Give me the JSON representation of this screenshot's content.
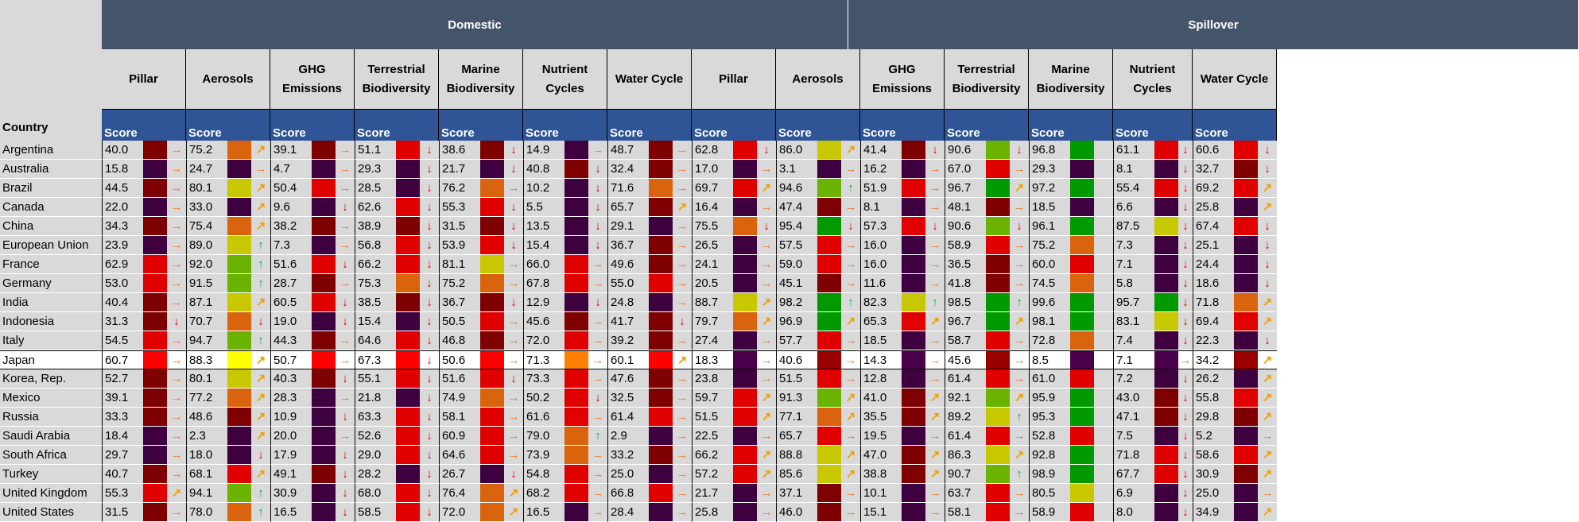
{
  "header": {
    "groups": [
      "Domestic",
      "Spillover"
    ],
    "country_label": "Country",
    "score_label": "Score",
    "indicators": [
      "Pillar",
      "Aerosols",
      "GHG Emissions",
      "Terrestrial Biodiversity",
      "Marine Biodiversity",
      "Nutrient Cycles",
      "Water Cycle"
    ]
  },
  "chart_data": {
    "type": "table",
    "highlighted_country": "Japan",
    "colors": {
      "purple": "#3f003f",
      "maroon": "#7f0000",
      "red": "#e00000",
      "orange": "#d9640d",
      "yellow_green": "#c8c800",
      "green_light": "#6ab300",
      "green": "#009a00",
      "bright_red": "#ff0000",
      "bright_orange": "#ff7f00",
      "bright_yellow": "#ffff00",
      "bright_purple": "#4b004b",
      "bright_maroon": "#9a0000",
      "arrow_orange": "#ed7d31",
      "arrow_amber": "#f0a000",
      "arrow_green": "#00b050",
      "arrow_red": "#e00000"
    },
    "countries": [
      "Argentina",
      "Australia",
      "Brazil",
      "Canada",
      "China",
      "European Union",
      "France",
      "Germany",
      "India",
      "Indonesia",
      "Italy",
      "Japan",
      "Korea, Rep.",
      "Mexico",
      "Russia",
      "Saudi Arabia",
      "South Africa",
      "Turkey",
      "United Kingdom",
      "United States"
    ],
    "domestic": {
      "scores": [
        [
          40.0,
          75.2,
          39.1,
          51.1,
          38.6,
          14.9,
          48.7
        ],
        [
          15.8,
          24.7,
          4.7,
          29.3,
          21.7,
          40.8,
          32.4
        ],
        [
          44.5,
          80.1,
          50.4,
          28.5,
          76.2,
          10.2,
          71.6
        ],
        [
          22.0,
          33.0,
          9.6,
          62.6,
          55.3,
          5.5,
          65.7
        ],
        [
          34.3,
          75.4,
          38.2,
          38.9,
          31.5,
          13.5,
          29.1
        ],
        [
          23.9,
          89.0,
          7.3,
          56.8,
          53.9,
          15.4,
          36.7
        ],
        [
          62.9,
          92.0,
          51.6,
          66.2,
          81.1,
          66.0,
          49.6
        ],
        [
          53.0,
          91.5,
          28.7,
          75.3,
          75.2,
          67.8,
          55.0
        ],
        [
          40.4,
          87.1,
          60.5,
          38.5,
          36.7,
          12.9,
          24.8
        ],
        [
          31.3,
          70.7,
          19.0,
          15.4,
          50.5,
          45.6,
          41.7
        ],
        [
          54.5,
          94.7,
          44.3,
          64.6,
          46.8,
          72.0,
          39.2
        ],
        [
          60.7,
          88.3,
          50.7,
          67.3,
          50.6,
          71.3,
          60.1
        ],
        [
          52.7,
          80.1,
          40.3,
          55.1,
          51.6,
          73.3,
          47.6
        ],
        [
          39.1,
          77.2,
          28.3,
          21.8,
          74.9,
          50.2,
          32.5
        ],
        [
          33.3,
          48.6,
          10.9,
          63.3,
          58.1,
          61.6,
          61.4
        ],
        [
          18.4,
          2.3,
          20.0,
          52.6,
          60.9,
          79.0,
          2.9
        ],
        [
          29.7,
          18.0,
          17.9,
          29.0,
          64.6,
          73.9,
          33.2
        ],
        [
          40.7,
          68.1,
          49.1,
          28.2,
          26.7,
          54.8,
          25.0
        ],
        [
          55.3,
          94.1,
          30.9,
          68.0,
          76.4,
          68.2,
          66.8
        ],
        [
          31.5,
          78.0,
          16.5,
          58.5,
          72.0,
          16.5,
          28.4
        ]
      ],
      "colors": [
        [
          "maroon",
          "orange",
          "maroon",
          "red",
          "maroon",
          "purple",
          "maroon"
        ],
        [
          "purple",
          "purple",
          "purple",
          "purple",
          "purple",
          "maroon",
          "maroon"
        ],
        [
          "maroon",
          "yellow_green",
          "red",
          "purple",
          "orange",
          "purple",
          "orange"
        ],
        [
          "purple",
          "purple",
          "purple",
          "red",
          "red",
          "purple",
          "maroon"
        ],
        [
          "maroon",
          "orange",
          "maroon",
          "maroon",
          "maroon",
          "purple",
          "purple"
        ],
        [
          "purple",
          "yellow_green",
          "purple",
          "red",
          "red",
          "purple",
          "maroon"
        ],
        [
          "red",
          "green_light",
          "red",
          "red",
          "yellow_green",
          "red",
          "maroon"
        ],
        [
          "red",
          "green_light",
          "maroon",
          "orange",
          "orange",
          "red",
          "red"
        ],
        [
          "maroon",
          "yellow_green",
          "red",
          "maroon",
          "maroon",
          "purple",
          "purple"
        ],
        [
          "maroon",
          "orange",
          "purple",
          "purple",
          "red",
          "maroon",
          "maroon"
        ],
        [
          "red",
          "green_light",
          "maroon",
          "red",
          "maroon",
          "red",
          "maroon"
        ],
        [
          "bright_red",
          "bright_yellow",
          "bright_red",
          "bright_red",
          "bright_red",
          "bright_orange",
          "bright_red"
        ],
        [
          "maroon",
          "yellow_green",
          "maroon",
          "red",
          "red",
          "red",
          "maroon"
        ],
        [
          "maroon",
          "orange",
          "purple",
          "purple",
          "orange",
          "red",
          "maroon"
        ],
        [
          "maroon",
          "maroon",
          "purple",
          "red",
          "red",
          "red",
          "red"
        ],
        [
          "purple",
          "purple",
          "purple",
          "red",
          "red",
          "orange",
          "purple"
        ],
        [
          "purple",
          "purple",
          "purple",
          "red",
          "red",
          "orange",
          "maroon"
        ],
        [
          "maroon",
          "red",
          "maroon",
          "purple",
          "purple",
          "red",
          "purple"
        ],
        [
          "red",
          "green_light",
          "purple",
          "red",
          "orange",
          "red",
          "red"
        ],
        [
          "maroon",
          "orange",
          "purple",
          "red",
          "orange",
          "purple",
          "purple"
        ]
      ],
      "trends": [
        [
          "→",
          "↗",
          "→",
          "↓",
          "↓",
          "→",
          "→"
        ],
        [
          "→",
          "→",
          "→",
          "↓",
          "↓",
          "↓",
          "→"
        ],
        [
          "→",
          "↗",
          "→",
          "↓",
          "→",
          "↓",
          "→"
        ],
        [
          "→",
          "↗",
          "↓",
          "↓",
          "↓",
          "↓",
          "↗"
        ],
        [
          "→",
          "↗",
          "→",
          "↓",
          "↓",
          "↓",
          "→"
        ],
        [
          "→",
          "↑",
          "→",
          "↓",
          "↓",
          "↓",
          "→"
        ],
        [
          "→",
          "↑",
          "↓",
          "↓",
          "→",
          "→",
          "→"
        ],
        [
          "→",
          "↑",
          "→",
          "↓",
          "→",
          "→",
          "→"
        ],
        [
          "→",
          "↗",
          "↓",
          "↓",
          "↓",
          "↓",
          "→"
        ],
        [
          "↓",
          "↓",
          "↓",
          "↓",
          "→",
          "→",
          "↓"
        ],
        [
          "→",
          "↑",
          "→",
          "↓",
          "→",
          "→",
          "→"
        ],
        [
          "→",
          "↗",
          "→",
          "↓",
          "→",
          "→",
          "↗"
        ],
        [
          "→",
          "↗",
          "↓",
          "↓",
          "↓",
          "→",
          "→"
        ],
        [
          "→",
          "↗",
          "→",
          "↓",
          "→",
          "↓",
          "→"
        ],
        [
          "→",
          "↗",
          "↓",
          "↓",
          "→",
          "→",
          "→"
        ],
        [
          "→",
          "↗",
          "→",
          "↓",
          "→",
          "↑",
          "→"
        ],
        [
          "→",
          "↓",
          "↓",
          "↓",
          "→",
          "→",
          "→"
        ],
        [
          "→",
          "↗",
          "↓",
          "↓",
          "↓",
          "→",
          "→"
        ],
        [
          "↗",
          "↑",
          "↓",
          "↓",
          "↗",
          "→",
          "→"
        ],
        [
          "→",
          "↑",
          "↓",
          "↓",
          "↗",
          "→",
          "→"
        ]
      ]
    },
    "spillover": {
      "scores": [
        [
          62.8,
          86.0,
          41.4,
          90.6,
          96.8,
          61.1,
          60.6
        ],
        [
          17.0,
          3.1,
          16.2,
          67.0,
          29.3,
          8.1,
          32.7
        ],
        [
          69.7,
          94.6,
          51.9,
          96.7,
          97.2,
          55.4,
          69.2
        ],
        [
          16.4,
          47.4,
          8.1,
          48.1,
          18.5,
          6.6,
          25.8
        ],
        [
          75.5,
          95.4,
          57.3,
          90.6,
          96.1,
          87.5,
          67.4
        ],
        [
          26.5,
          57.5,
          16.0,
          58.9,
          75.2,
          7.3,
          25.1
        ],
        [
          24.1,
          59.0,
          16.0,
          36.5,
          60.0,
          7.1,
          24.4
        ],
        [
          20.5,
          45.1,
          11.6,
          41.8,
          74.5,
          5.8,
          18.6
        ],
        [
          88.7,
          98.2,
          82.3,
          98.5,
          99.6,
          95.7,
          71.8
        ],
        [
          79.7,
          96.9,
          65.3,
          96.7,
          98.1,
          83.1,
          69.4
        ],
        [
          27.4,
          57.7,
          18.5,
          58.7,
          72.8,
          7.4,
          22.3
        ],
        [
          18.3,
          40.6,
          14.3,
          45.6,
          8.5,
          7.1,
          34.2
        ],
        [
          23.8,
          51.5,
          12.8,
          61.4,
          61.0,
          7.2,
          26.2
        ],
        [
          59.7,
          91.3,
          41.0,
          92.1,
          95.9,
          43.0,
          55.8
        ],
        [
          51.5,
          77.1,
          35.5,
          89.2,
          95.3,
          47.1,
          29.8
        ],
        [
          22.5,
          65.7,
          19.5,
          61.4,
          52.8,
          7.5,
          5.2
        ],
        [
          66.2,
          88.8,
          47.0,
          86.3,
          92.8,
          71.8,
          58.6
        ],
        [
          57.2,
          85.6,
          38.8,
          90.7,
          98.9,
          67.7,
          30.9
        ],
        [
          21.7,
          37.1,
          10.1,
          63.7,
          80.5,
          6.9,
          25.0
        ],
        [
          25.8,
          46.0,
          15.1,
          58.1,
          58.9,
          8.0,
          34.9
        ]
      ],
      "colors": [
        [
          "red",
          "yellow_green",
          "maroon",
          "green_light",
          "green",
          "red",
          "red"
        ],
        [
          "purple",
          "purple",
          "purple",
          "red",
          "purple",
          "purple",
          "maroon"
        ],
        [
          "red",
          "green_light",
          "red",
          "green",
          "green",
          "red",
          "red"
        ],
        [
          "purple",
          "maroon",
          "purple",
          "maroon",
          "purple",
          "purple",
          "purple"
        ],
        [
          "orange",
          "green",
          "red",
          "green_light",
          "green",
          "yellow_green",
          "red"
        ],
        [
          "purple",
          "red",
          "purple",
          "red",
          "orange",
          "purple",
          "purple"
        ],
        [
          "purple",
          "red",
          "purple",
          "maroon",
          "red",
          "purple",
          "purple"
        ],
        [
          "purple",
          "maroon",
          "purple",
          "maroon",
          "orange",
          "purple",
          "purple"
        ],
        [
          "yellow_green",
          "green",
          "yellow_green",
          "green",
          "green",
          "green",
          "orange"
        ],
        [
          "orange",
          "green",
          "red",
          "green",
          "green",
          "yellow_green",
          "red"
        ],
        [
          "purple",
          "red",
          "purple",
          "red",
          "orange",
          "purple",
          "purple"
        ],
        [
          "bright_purple",
          "bright_maroon",
          "bright_purple",
          "bright_maroon",
          "bright_purple",
          "bright_purple",
          "bright_maroon"
        ],
        [
          "purple",
          "red",
          "purple",
          "red",
          "red",
          "purple",
          "purple"
        ],
        [
          "red",
          "green_light",
          "maroon",
          "green_light",
          "green",
          "maroon",
          "red"
        ],
        [
          "red",
          "orange",
          "maroon",
          "yellow_green",
          "green",
          "maroon",
          "maroon"
        ],
        [
          "purple",
          "red",
          "purple",
          "red",
          "red",
          "purple",
          "purple"
        ],
        [
          "red",
          "yellow_green",
          "maroon",
          "yellow_green",
          "green",
          "red",
          "red"
        ],
        [
          "red",
          "yellow_green",
          "maroon",
          "green_light",
          "green",
          "red",
          "maroon"
        ],
        [
          "purple",
          "maroon",
          "purple",
          "red",
          "yellow_green",
          "purple",
          "purple"
        ],
        [
          "purple",
          "maroon",
          "purple",
          "red",
          "red",
          "purple",
          "purple"
        ]
      ],
      "trends": [
        [
          "↓",
          "↗",
          "↓",
          "↓",
          "",
          "↓",
          "↓"
        ],
        [
          "→",
          "→",
          "→",
          "→",
          "",
          "↓",
          "↓"
        ],
        [
          "↗",
          "↑",
          "→",
          "↗",
          "",
          "↓",
          "↗"
        ],
        [
          "→",
          "→",
          "→",
          "→",
          "",
          "↓",
          "↗"
        ],
        [
          "↓",
          "↓",
          "↓",
          "↓",
          "",
          "↓",
          "↓"
        ],
        [
          "→",
          "→",
          "→",
          "→",
          "",
          "↓",
          "↓"
        ],
        [
          "→",
          "→",
          "→",
          "→",
          "",
          "↓",
          "↓"
        ],
        [
          "→",
          "→",
          "→",
          "→",
          "",
          "↓",
          "↓"
        ],
        [
          "↗",
          "↑",
          "↑",
          "↑",
          "",
          "↓",
          "↗"
        ],
        [
          "↗",
          "↗",
          "↗",
          "↗",
          "",
          "↓",
          "↗"
        ],
        [
          "→",
          "→",
          "→",
          "→",
          "",
          "↓",
          "↓"
        ],
        [
          "→",
          "→",
          "→",
          "→",
          "",
          "→",
          "↗"
        ],
        [
          "→",
          "→",
          "→",
          "→",
          "",
          "↓",
          "↗"
        ],
        [
          "↗",
          "↗",
          "↗",
          "↗",
          "",
          "↓",
          "↗"
        ],
        [
          "↗",
          "↗",
          "↗",
          "↑",
          "",
          "↓",
          "↗"
        ],
        [
          "→",
          "→",
          "→",
          "→",
          "",
          "↓",
          "→"
        ],
        [
          "↗",
          "↗",
          "↗",
          "↗",
          "",
          "↓",
          "↗"
        ],
        [
          "↗",
          "↗",
          "↗",
          "↑",
          "",
          "↓",
          "↗"
        ],
        [
          "→",
          "→",
          "→",
          "→",
          "",
          "↓",
          "→"
        ],
        [
          "→",
          "→",
          "→",
          "→",
          "",
          "↓",
          "↗"
        ]
      ]
    }
  }
}
